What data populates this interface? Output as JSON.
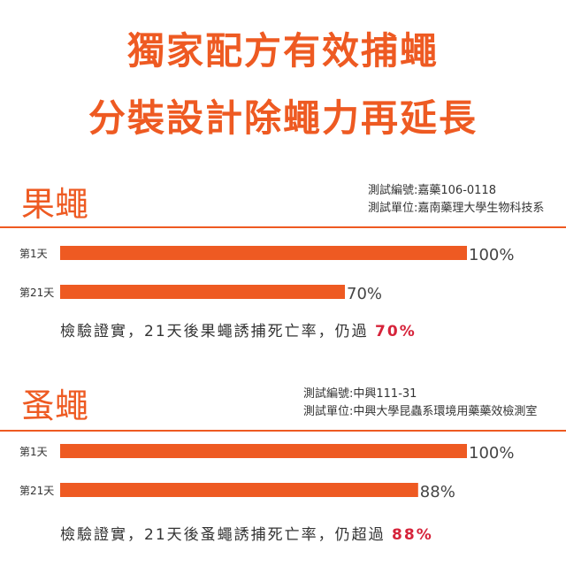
{
  "headline": {
    "line1": "獨家配方有效捕蠅",
    "line2": "分裝設計除蠅力再延長"
  },
  "colors": {
    "accent": "#ee5a22",
    "highlight": "#d6233a",
    "text": "#333333"
  },
  "sections": [
    {
      "title": "果蠅",
      "test_code": "測試編號:嘉藥106-0118",
      "test_unit": "測試單位:嘉南藥理大學生物科技系",
      "conclusion_prefix": "檢驗證實，21天後果蠅誘捕死亡率，仍過",
      "conclusion_value": "70%"
    },
    {
      "title": "蚤蠅",
      "test_code": "測試編號:中興111-31",
      "test_unit": "測試單位:中興大學昆蟲系環境用藥藥效檢測室",
      "conclusion_prefix": "檢驗證實，21天後蚤蠅誘捕死亡率，仍超過",
      "conclusion_value": "88%"
    }
  ],
  "chart_data": [
    {
      "type": "bar",
      "categories": [
        "第1天",
        "第21天"
      ],
      "values": [
        100,
        70
      ],
      "value_labels": [
        "100%",
        "70%"
      ],
      "ylim": [
        0,
        100
      ],
      "orientation": "horizontal",
      "grid": false
    },
    {
      "type": "bar",
      "categories": [
        "第1天",
        "第21天"
      ],
      "values": [
        100,
        88
      ],
      "value_labels": [
        "100%",
        "88%"
      ],
      "ylim": [
        0,
        100
      ],
      "orientation": "horizontal",
      "grid": false
    }
  ]
}
